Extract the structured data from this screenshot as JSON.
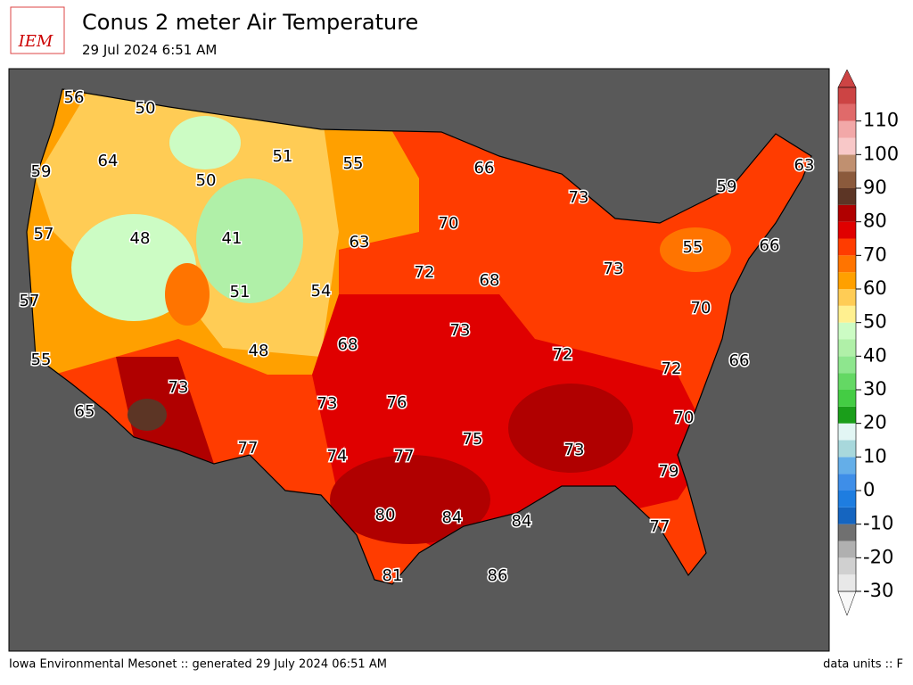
{
  "logo": "IEM",
  "title": "Conus 2 meter Air Temperature",
  "subtitle": "29 Jul 2024 6:51 AM",
  "station_values": [
    56,
    50,
    64,
    59,
    50,
    51,
    55,
    66,
    73,
    59,
    63,
    57,
    48,
    41,
    70,
    63,
    55,
    66,
    72,
    68,
    73,
    51,
    54,
    57,
    70,
    73,
    68,
    48,
    72,
    72,
    66,
    55,
    73,
    76,
    73,
    70,
    65,
    75,
    73,
    77,
    74,
    77,
    79,
    80,
    84,
    84,
    77,
    81,
    86
  ],
  "colorbar": {
    "levels": [
      -30,
      -25,
      -20,
      -15,
      -10,
      -5,
      0,
      5,
      10,
      15,
      20,
      25,
      30,
      35,
      40,
      45,
      50,
      55,
      60,
      65,
      70,
      75,
      80,
      85,
      90,
      95,
      100,
      105,
      110,
      115,
      120
    ],
    "colors": [
      "#e8e8e8",
      "#d0d0d0",
      "#b0b0b0",
      "#707070",
      "#1565c0",
      "#1e7de0",
      "#3e8ee8",
      "#64aee8",
      "#a8d8dc",
      "#e2f6f4",
      "#1a9e1a",
      "#44cc44",
      "#64d864",
      "#8ee68e",
      "#b0f0a8",
      "#ccfcc4",
      "#fff090",
      "#ffcc55",
      "#ffa000",
      "#ff7400",
      "#ff3c00",
      "#e00000",
      "#b00000",
      "#5c3525",
      "#8b5a3c",
      "#c09070",
      "#f8c8c8",
      "#f2a8a8",
      "#e06a6a",
      "#cc4444"
    ],
    "ticks": [
      -30,
      -20,
      -10,
      0,
      10,
      20,
      30,
      40,
      50,
      60,
      70,
      80,
      90,
      100,
      110
    ]
  },
  "footer": {
    "left": "Iowa Environmental Mesonet :: generated 29 July 2024 06:51 AM",
    "right": "data units :: F"
  }
}
